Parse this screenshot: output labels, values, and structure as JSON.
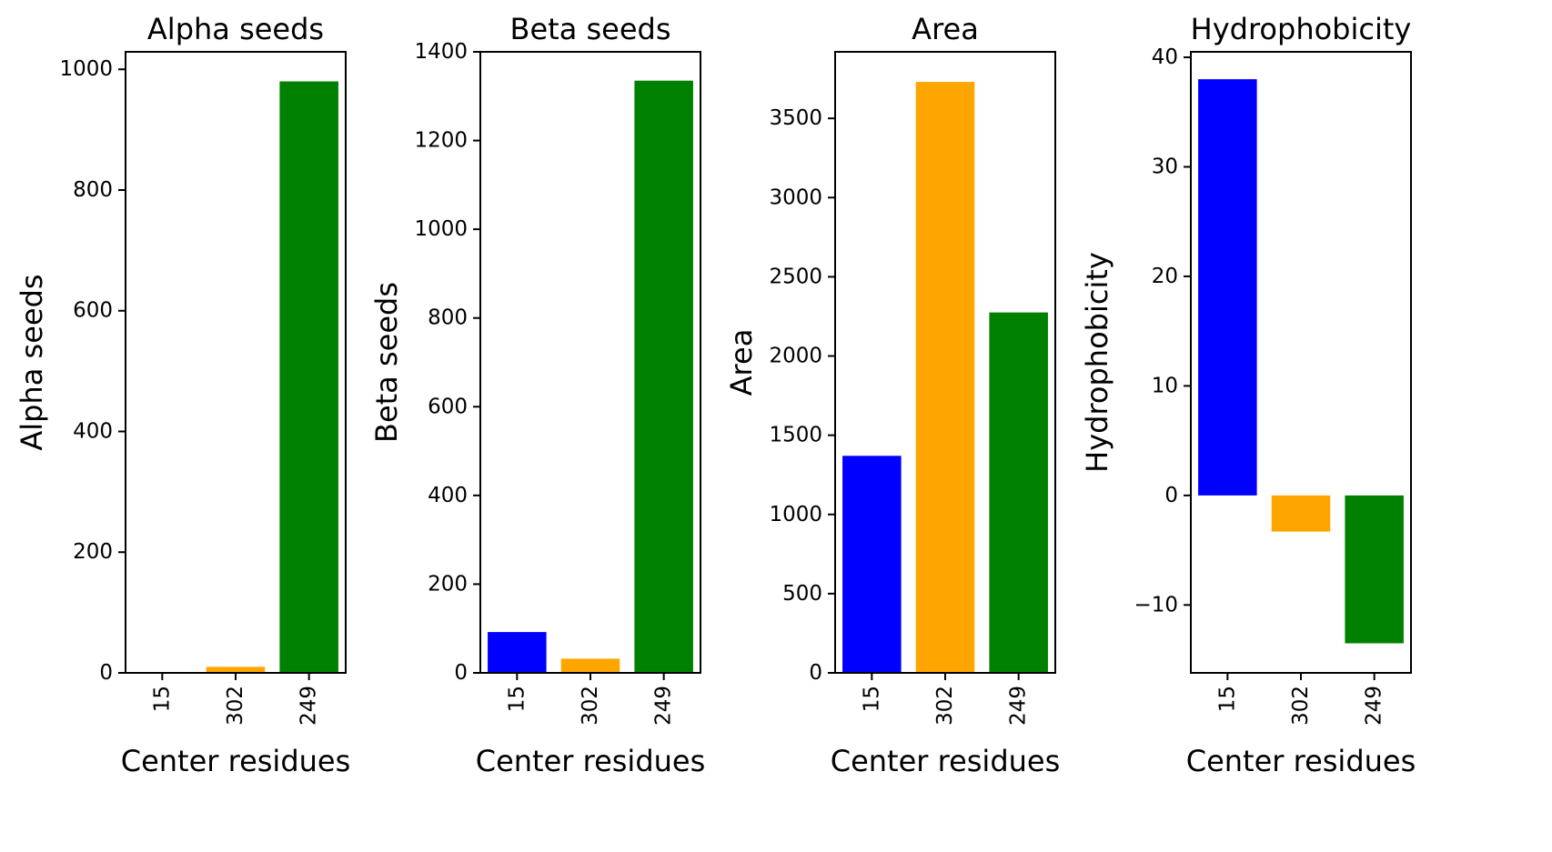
{
  "chart_data": [
    {
      "type": "bar",
      "title": "Alpha seeds",
      "xlabel": "Center residues",
      "ylabel": "Alpha seeds",
      "categories": [
        "15",
        "302",
        "249"
      ],
      "values": [
        0,
        10,
        980
      ],
      "colors": [
        "#0000ff",
        "#ffa500",
        "#008000"
      ],
      "ylim": [
        0,
        1029
      ],
      "yticks": [
        0,
        200,
        400,
        600,
        800,
        1000
      ],
      "ytick_labels": [
        "0",
        "200",
        "400",
        "600",
        "800",
        "1000"
      ]
    },
    {
      "type": "bar",
      "title": "Beta seeds",
      "xlabel": "Center residues",
      "ylabel": "Beta seeds",
      "categories": [
        "15",
        "302",
        "249"
      ],
      "values": [
        92,
        32,
        1335
      ],
      "colors": [
        "#0000ff",
        "#ffa500",
        "#008000"
      ],
      "ylim": [
        0,
        1400
      ],
      "yticks": [
        0,
        200,
        400,
        600,
        800,
        1000,
        1200,
        1400
      ],
      "ytick_labels": [
        "0",
        "200",
        "400",
        "600",
        "800",
        "1000",
        "1200",
        "1400"
      ]
    },
    {
      "type": "bar",
      "title": "Area",
      "xlabel": "Center residues",
      "ylabel": "Area",
      "categories": [
        "15",
        "302",
        "249"
      ],
      "values": [
        1370,
        3730,
        2275
      ],
      "colors": [
        "#0000ff",
        "#ffa500",
        "#008000"
      ],
      "ylim": [
        0,
        3920
      ],
      "yticks": [
        0,
        500,
        1000,
        1500,
        2000,
        2500,
        3000,
        3500
      ],
      "ytick_labels": [
        "0",
        "500",
        "1000",
        "1500",
        "2000",
        "2500",
        "3000",
        "3500"
      ]
    },
    {
      "type": "bar",
      "title": "Hydrophobicity",
      "xlabel": "Center residues",
      "ylabel": "Hydrophobicity",
      "categories": [
        "15",
        "302",
        "249"
      ],
      "values": [
        38,
        -3.3,
        -13.5
      ],
      "colors": [
        "#0000ff",
        "#ffa500",
        "#008000"
      ],
      "ylim": [
        -16.2,
        40.5
      ],
      "yticks": [
        -10,
        0,
        10,
        20,
        30,
        40
      ],
      "ytick_labels": [
        "−10",
        "0",
        "10",
        "20",
        "30",
        "40"
      ]
    }
  ]
}
